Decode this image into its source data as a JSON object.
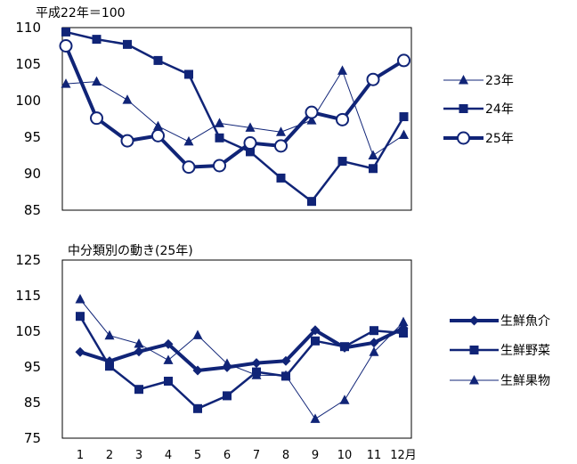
{
  "chart_data": [
    {
      "type": "line",
      "title": "平成22年＝100",
      "ylim": [
        85,
        110
      ],
      "yticks": [
        "110",
        "105",
        "100",
        "95",
        "90",
        "85"
      ],
      "x": [
        1,
        2,
        3,
        4,
        5,
        6,
        7,
        8,
        9,
        10,
        11,
        12
      ],
      "series": [
        {
          "name": "23年",
          "marker": "triangle",
          "values": [
            102.3,
            102.6,
            100.1,
            96.5,
            94.4,
            96.9,
            96.3,
            95.7,
            97.3,
            104.1,
            92.5,
            95.3
          ]
        },
        {
          "name": "24年",
          "marker": "square",
          "values": [
            109.4,
            108.4,
            107.7,
            105.5,
            103.6,
            94.9,
            93.0,
            89.4,
            86.2,
            91.7,
            90.7,
            97.8
          ]
        },
        {
          "name": "25年",
          "marker": "circle",
          "values": [
            107.5,
            97.6,
            94.5,
            95.2,
            90.9,
            91.1,
            94.2,
            93.8,
            98.4,
            97.4,
            102.9,
            105.5
          ]
        }
      ]
    },
    {
      "type": "line",
      "title": "中分類別の動き(25年)",
      "ylim": [
        75,
        125
      ],
      "yticks": [
        "125",
        "115",
        "105",
        "95",
        "85",
        "75"
      ],
      "x": [
        1,
        2,
        3,
        4,
        5,
        6,
        7,
        8,
        9,
        10,
        11,
        12
      ],
      "xticks": [
        "1",
        "2",
        "3",
        "4",
        "5",
        "6",
        "7",
        "8",
        "9",
        "10",
        "11",
        "12月"
      ],
      "series": [
        {
          "name": "生鮮魚介",
          "marker": "diamond",
          "values": [
            99.2,
            96.6,
            99.3,
            101.4,
            94.0,
            94.9,
            96.1,
            96.7,
            105.3,
            100.4,
            101.8,
            105.9
          ]
        },
        {
          "name": "生鮮野菜",
          "marker": "square",
          "values": [
            109.2,
            95.2,
            88.7,
            91.0,
            83.3,
            86.9,
            93.6,
            92.4,
            102.3,
            100.7,
            105.2,
            104.5
          ]
        },
        {
          "name": "生鮮果物",
          "marker": "triangle",
          "values": [
            114.0,
            103.8,
            101.5,
            96.9,
            103.9,
            95.9,
            92.7,
            92.6,
            80.4,
            85.7,
            99.2,
            107.6
          ]
        }
      ]
    }
  ],
  "colors": {
    "series": "#102477",
    "frame": "#000000",
    "background": "#ffffff"
  }
}
